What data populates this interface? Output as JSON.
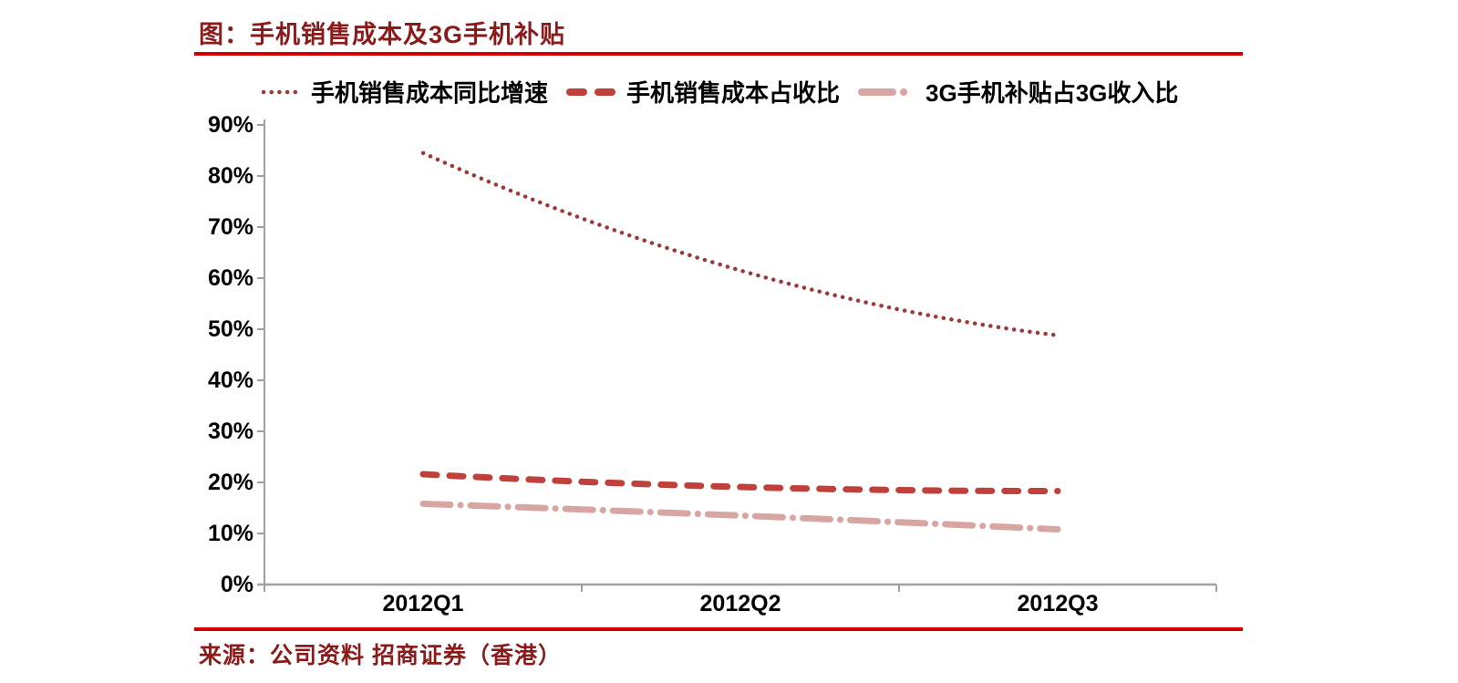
{
  "header": {
    "title": "图：手机销售成本及3G手机补贴"
  },
  "footer": {
    "source": "来源：公司资料 招商证券（香港）"
  },
  "colors": {
    "accent_rule": "#D40000",
    "heading_text": "#8B1B1B",
    "axis": "#A0A0A0",
    "tick_label": "#000000"
  },
  "chart_data": {
    "type": "line",
    "title": "手机销售成本及3G手机补贴",
    "categories": [
      "2012Q1",
      "2012Q2",
      "2012Q3"
    ],
    "series": [
      {
        "name": "手机销售成本同比增速",
        "values": [
          84.5,
          61.5,
          48.8
        ],
        "color": "#9E3938",
        "style": "dotted"
      },
      {
        "name": "手机销售成本占收比",
        "values": [
          21.6,
          19.1,
          18.3
        ],
        "color": "#C0413B",
        "style": "dashed"
      },
      {
        "name": "3G手机补贴占3G收入比",
        "values": [
          15.8,
          13.5,
          10.8
        ],
        "color": "#D9A5A2",
        "style": "dashdot"
      }
    ],
    "ylim": [
      0,
      90
    ],
    "y_ticks": [
      {
        "v": 0,
        "label": "0%"
      },
      {
        "v": 10,
        "label": "10%"
      },
      {
        "v": 20,
        "label": "20%"
      },
      {
        "v": 30,
        "label": "30%"
      },
      {
        "v": 40,
        "label": "40%"
      },
      {
        "v": 50,
        "label": "50%"
      },
      {
        "v": 60,
        "label": "60%"
      },
      {
        "v": 70,
        "label": "70%"
      },
      {
        "v": 80,
        "label": "80%"
      },
      {
        "v": 90,
        "label": "90%"
      }
    ],
    "grid": false,
    "legend_position": "top"
  }
}
